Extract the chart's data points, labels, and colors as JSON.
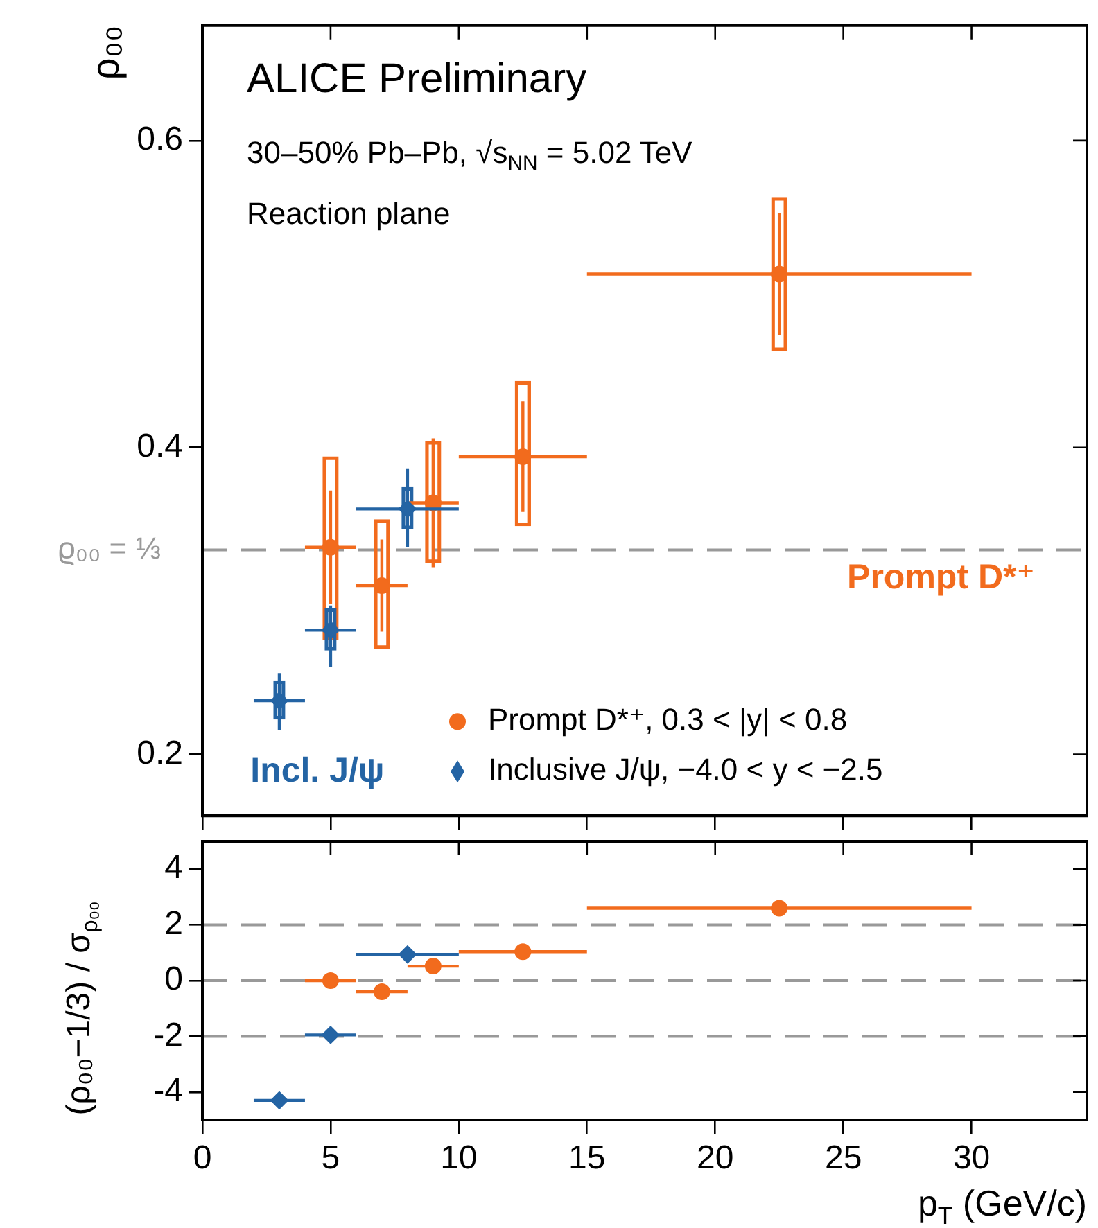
{
  "chart_data": [
    {
      "type": "scatter",
      "ylabel": "ρ₀₀",
      "annotations": [
        "ALICE Preliminary",
        "30–50% Pb–Pb, √s$_{NN}$ = 5.02 TeV",
        "Reaction plane",
        "Prompt D*⁺",
        "Incl. J/ψ"
      ],
      "xlim": [
        0,
        34.5
      ],
      "xticks": [
        0,
        5,
        10,
        15,
        20,
        25,
        30
      ],
      "ylim": [
        0.16,
        0.675
      ],
      "yticks": [
        0.2,
        0.4,
        0.6
      ],
      "tick_labels": "y",
      "grid": false,
      "legend": "bottom right",
      "ref_lines": [
        {
          "axis": "y",
          "value": 0.3333,
          "label": "ϱ₀₀ = ⅓",
          "color": "#999999",
          "line_style": "dashed"
        }
      ],
      "series": [
        {
          "type": "bar",
          "color": "#f26b1d",
          "x": [
            5,
            7,
            9,
            12.5,
            22.5
          ],
          "base": [
            0.275,
            0.269,
            0.325,
            0.349,
            0.463
          ],
          "values": [
            0.119,
            0.084,
            0.079,
            0.094,
            0.1
          ]
        },
        {
          "type": "bar",
          "color": "#2464a4",
          "x": [
            3,
            5,
            8
          ],
          "base": [
            0.223,
            0.268,
            0.347
          ],
          "values": [
            0.025,
            0.027,
            0.027
          ]
        },
        {
          "name": "Prompt D*⁺, 0.3 < |y| < 0.8",
          "color": "#f26b1d",
          "marker": "circle",
          "x": [
            5,
            7,
            9,
            12.5,
            22.5
          ],
          "values": [
            0.335,
            0.31,
            0.364,
            0.394,
            0.513
          ],
          "errors": [
            0.037,
            0.03,
            0.042,
            0.036,
            0.04
          ],
          "xerrors": [
            1,
            1,
            1,
            2.5,
            7.5
          ]
        },
        {
          "name": "Inclusive J/ψ, −4.0 < y < −2.5",
          "color": "#2464a4",
          "marker": "diamond",
          "x": [
            3,
            5,
            8
          ],
          "values": [
            0.235,
            0.281,
            0.36
          ],
          "errors": [
            [
              0.216,
              0.253
            ],
            [
              0.257,
              0.297
            ],
            [
              0.335,
              0.386
            ]
          ],
          "xerrors": [
            1,
            1,
            2
          ]
        }
      ]
    },
    {
      "type": "scatter",
      "ylabel": "(ρ₀₀−1/3) / σ$_{ρ₀₀}$",
      "xlabel": "p$_{T}$ (GeV/c)",
      "xlim": [
        0,
        34.5
      ],
      "xticks": [
        0,
        5,
        10,
        15,
        20,
        25,
        30
      ],
      "ylim": [
        -5,
        5
      ],
      "yticks": [
        -4,
        -2,
        0,
        2,
        4
      ],
      "grid": false,
      "ref_lines": [
        {
          "axis": "y",
          "value": 2,
          "color": "#999999",
          "line_style": "dashed"
        },
        {
          "axis": "y",
          "value": 0,
          "color": "#999999",
          "line_style": "dashed"
        },
        {
          "axis": "y",
          "value": -2,
          "color": "#999999",
          "line_style": "dashed"
        }
      ],
      "series": [
        {
          "color": "#f26b1d",
          "marker": "circle",
          "x": [
            5,
            7,
            9,
            12.5,
            22.5
          ],
          "values": [
            0.0,
            -0.4,
            0.52,
            1.04,
            2.6
          ],
          "xerrors": [
            1,
            1,
            1,
            2.5,
            7.5
          ]
        },
        {
          "color": "#2464a4",
          "marker": "diamond",
          "x": [
            3,
            5,
            8
          ],
          "values": [
            -4.3,
            -1.95,
            0.94
          ],
          "xerrors": [
            1,
            1,
            2
          ]
        }
      ]
    }
  ]
}
